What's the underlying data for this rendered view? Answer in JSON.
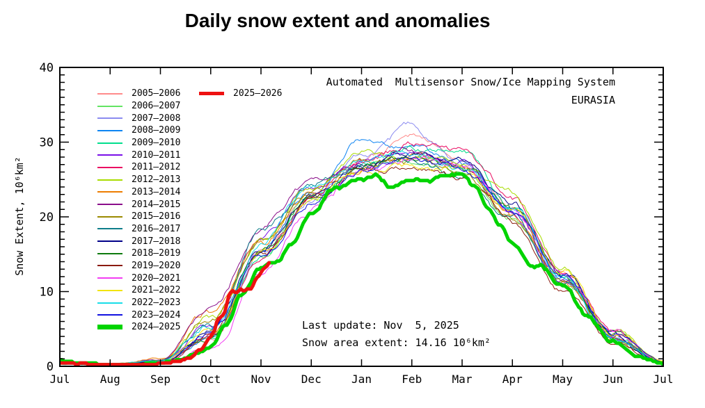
{
  "title": "Daily snow extent and anomalies",
  "header": {
    "system": "Automated  Multisensor Snow/Ice Mapping System",
    "region": "EURASIA"
  },
  "annotations": {
    "last_update": "Last update: Nov  5, 2025",
    "extent": "Snow area extent: 14.16 10⁶km²"
  },
  "chart_data": {
    "type": "line",
    "title": "Daily snow extent and anomalies",
    "xlabel": "",
    "ylabel": "Snow Extent, 10⁶km²",
    "x_unit": "months from Jul 1 (0) to Jul 1 (12)",
    "x_ticklabels": [
      "Jul",
      "Aug",
      "Sep",
      "Oct",
      "Nov",
      "Dec",
      "Jan",
      "Feb",
      "Mar",
      "Apr",
      "May",
      "Jun",
      "Jul"
    ],
    "xlim": [
      0,
      12
    ],
    "ylim": [
      0,
      40
    ],
    "y_ticks": [
      0,
      10,
      20,
      30,
      40
    ],
    "y_minor_tick_step": 1,
    "grid": false,
    "legend_position": "upper-left-inside",
    "series": [
      {
        "name": "2005-2006",
        "color": "#FF8A8A",
        "width": 1,
        "legend_col": 0,
        "values": [
          0.5,
          0.2,
          0.5,
          4.0,
          15.0,
          22.5,
          27.0,
          30.0,
          27.5,
          22.0,
          13.5,
          4.8,
          0.8
        ]
      },
      {
        "name": "2006-2007",
        "color": "#63E463",
        "width": 1,
        "legend_col": 0,
        "values": [
          0.4,
          0.2,
          0.5,
          3.6,
          14.0,
          22.0,
          26.0,
          27.2,
          26.0,
          20.0,
          11.0,
          3.6,
          0.5
        ]
      },
      {
        "name": "2007-2008",
        "color": "#8B8BF0",
        "width": 1,
        "legend_col": 0,
        "values": [
          0.4,
          0.2,
          0.5,
          4.2,
          15.0,
          22.5,
          27.5,
          31.5,
          27.5,
          21.0,
          12.0,
          4.0,
          0.6
        ]
      },
      {
        "name": "2008-2009",
        "color": "#0D84F2",
        "width": 1,
        "legend_col": 0,
        "values": [
          0.4,
          0.2,
          0.6,
          5.0,
          16.0,
          23.5,
          29.5,
          29.0,
          27.0,
          21.0,
          12.0,
          4.0,
          0.6
        ]
      },
      {
        "name": "2009-2010",
        "color": "#00DE8C",
        "width": 1,
        "legend_col": 0,
        "values": [
          0.3,
          0.2,
          0.5,
          4.0,
          14.5,
          22.0,
          26.5,
          29.0,
          28.5,
          21.5,
          12.0,
          4.0,
          0.5
        ]
      },
      {
        "name": "2010-2011",
        "color": "#7A0FE8",
        "width": 1,
        "legend_col": 0,
        "values": [
          0.4,
          0.2,
          0.6,
          5.0,
          16.5,
          23.5,
          27.0,
          28.0,
          26.5,
          20.5,
          11.5,
          3.8,
          0.5
        ]
      },
      {
        "name": "2011-2012",
        "color": "#EA0D62",
        "width": 1,
        "legend_col": 0,
        "values": [
          0.4,
          0.2,
          0.5,
          4.0,
          15.0,
          22.0,
          26.5,
          29.5,
          28.5,
          22.0,
          13.0,
          4.5,
          0.6
        ]
      },
      {
        "name": "2012-2013",
        "color": "#A8DC00",
        "width": 1,
        "legend_col": 0,
        "values": [
          0.3,
          0.2,
          0.7,
          6.0,
          17.0,
          24.0,
          28.5,
          28.0,
          27.0,
          22.5,
          13.0,
          4.5,
          0.6
        ]
      },
      {
        "name": "2013-2014",
        "color": "#ED7D00",
        "width": 1,
        "legend_col": 0,
        "values": [
          0.4,
          0.2,
          1.0,
          7.0,
          16.0,
          23.0,
          26.5,
          27.5,
          26.0,
          20.0,
          11.0,
          3.5,
          0.5
        ]
      },
      {
        "name": "2014-2015",
        "color": "#8A0D8A",
        "width": 1,
        "legend_col": 0,
        "values": [
          0.4,
          0.2,
          0.8,
          7.5,
          18.0,
          24.0,
          27.0,
          28.5,
          26.5,
          20.5,
          11.5,
          3.8,
          0.5
        ]
      },
      {
        "name": "2015-2016",
        "color": "#9A8A00",
        "width": 1,
        "legend_col": 0,
        "values": [
          0.4,
          0.2,
          0.6,
          5.0,
          16.0,
          23.0,
          27.5,
          28.0,
          26.0,
          20.0,
          11.5,
          3.6,
          0.5
        ]
      },
      {
        "name": "2016-2017",
        "color": "#0D7D8A",
        "width": 1,
        "legend_col": 0,
        "values": [
          0.4,
          0.2,
          0.7,
          6.0,
          18.5,
          24.0,
          27.5,
          28.0,
          26.0,
          19.5,
          11.0,
          3.5,
          0.5
        ]
      },
      {
        "name": "2017-2018",
        "color": "#000088",
        "width": 1,
        "legend_col": 0,
        "values": [
          0.4,
          0.2,
          0.6,
          5.0,
          16.0,
          23.0,
          27.0,
          28.5,
          27.5,
          21.5,
          12.5,
          4.2,
          0.6
        ]
      },
      {
        "name": "2018-2019",
        "color": "#0D7A0D",
        "width": 1,
        "legend_col": 0,
        "values": [
          0.4,
          0.2,
          0.5,
          4.5,
          15.5,
          22.5,
          26.5,
          27.5,
          26.5,
          20.5,
          12.0,
          4.0,
          0.5
        ]
      },
      {
        "name": "2019-2020",
        "color": "#8A1A0D",
        "width": 1,
        "legend_col": 0,
        "values": [
          0.4,
          0.2,
          0.5,
          4.0,
          15.0,
          22.0,
          26.0,
          26.5,
          25.0,
          19.0,
          10.5,
          3.2,
          0.4
        ]
      },
      {
        "name": "2020-2021",
        "color": "#F23CF2",
        "width": 1,
        "legend_col": 0,
        "values": [
          0.3,
          0.2,
          0.4,
          2.5,
          13.0,
          21.5,
          26.5,
          28.0,
          26.5,
          21.0,
          12.0,
          4.0,
          0.5
        ]
      },
      {
        "name": "2021-2022",
        "color": "#F2E40D",
        "width": 1,
        "legend_col": 0,
        "values": [
          0.4,
          0.2,
          0.5,
          4.5,
          15.5,
          22.5,
          26.5,
          27.5,
          26.5,
          21.0,
          12.5,
          4.2,
          0.6
        ]
      },
      {
        "name": "2022-2023",
        "color": "#17DDE8",
        "width": 1,
        "legend_col": 0,
        "values": [
          0.4,
          0.2,
          0.6,
          5.0,
          16.0,
          23.0,
          26.5,
          28.0,
          26.5,
          21.0,
          12.0,
          4.0,
          0.5
        ]
      },
      {
        "name": "2023-2024",
        "color": "#1111E0",
        "width": 1,
        "legend_col": 0,
        "values": [
          0.4,
          0.2,
          0.5,
          4.5,
          15.5,
          23.0,
          27.0,
          28.0,
          26.5,
          21.0,
          12.0,
          4.0,
          0.5
        ]
      },
      {
        "name": "2024-2025",
        "color": "#00D400",
        "width": 5,
        "legend_col": 0,
        "x": [
          0,
          0.5,
          1,
          1.5,
          2,
          2.4,
          2.7,
          3,
          3.3,
          3.6,
          4,
          4.3,
          4.6,
          5,
          5.5,
          6,
          6.3,
          6.6,
          7,
          7.3,
          7.6,
          8,
          8.25,
          8.5,
          8.75,
          9,
          9.5,
          10,
          10.5,
          11,
          11.5,
          12
        ],
        "values": [
          0.8,
          0.4,
          0.25,
          0.3,
          0.5,
          0.9,
          1.6,
          2.6,
          5.5,
          9.5,
          13.4,
          13.8,
          16.5,
          21.0,
          24.0,
          25.4,
          26.0,
          24.4,
          25.2,
          25.0,
          25.6,
          26.3,
          24.5,
          21.5,
          19.0,
          16.8,
          14.0,
          11.0,
          6.8,
          3.4,
          1.4,
          0.5
        ]
      },
      {
        "name": "2025-2026",
        "color": "#EE1111",
        "width": 5,
        "legend_col": 1,
        "x": [
          0,
          0.5,
          1,
          1.5,
          2,
          2.3,
          2.6,
          2.8,
          3,
          3.2,
          3.45,
          3.6,
          3.8,
          3.95,
          4.05,
          4.17
        ],
        "values": [
          0.45,
          0.3,
          0.2,
          0.2,
          0.3,
          0.55,
          1.2,
          2.2,
          3.8,
          6.5,
          10.4,
          10.5,
          10.8,
          12.3,
          13.3,
          14.16
        ],
        "last_value": 14.16,
        "last_date": "Nov 5, 2025"
      }
    ]
  }
}
